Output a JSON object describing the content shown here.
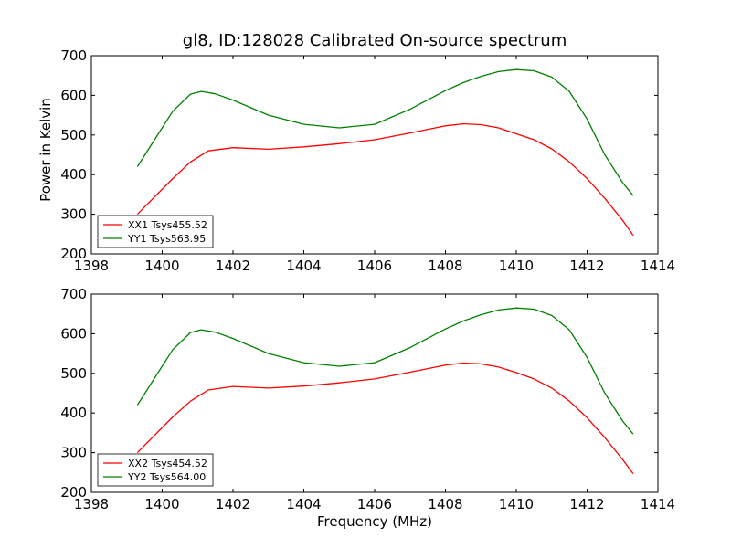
{
  "figure": {
    "title": "gl8, ID:128028 Calibrated On-source spectrum",
    "ylabel": "Power in Kelvin",
    "xlabel": "Frequency (MHz)"
  },
  "colors": {
    "red": "#ff0000",
    "green": "#008000"
  },
  "chart_data": [
    {
      "type": "line",
      "title": "gl8, ID:128028 Calibrated On-source spectrum",
      "xlabel": "",
      "ylabel": "Power in Kelvin",
      "xlim": [
        1398,
        1414
      ],
      "ylim": [
        200,
        700
      ],
      "xticks": [
        "1398",
        "1400",
        "1402",
        "1404",
        "1406",
        "1408",
        "1410",
        "1412",
        "1414"
      ],
      "yticks": [
        "200",
        "300",
        "400",
        "500",
        "600",
        "700"
      ],
      "legend_position": "lower-left",
      "grid": false,
      "series": [
        {
          "name": "XX1 Tsys455.52",
          "color": "#ff0000",
          "x": [
            1399.3,
            1399.8,
            1400.3,
            1400.8,
            1401.3,
            1402,
            1403,
            1404,
            1405,
            1406,
            1407,
            1408,
            1408.5,
            1409,
            1409.5,
            1410,
            1410.5,
            1411,
            1411.5,
            1412,
            1412.5,
            1413,
            1413.3
          ],
          "y": [
            300,
            345,
            390,
            432,
            460,
            468,
            464,
            470,
            478,
            488,
            505,
            523,
            528,
            526,
            518,
            503,
            488,
            465,
            432,
            390,
            340,
            285,
            247
          ]
        },
        {
          "name": "YY1 Tsys563.95",
          "color": "#008000",
          "x": [
            1399.3,
            1399.8,
            1400.3,
            1400.8,
            1401.1,
            1401.5,
            1402,
            1403,
            1404,
            1405,
            1406,
            1407,
            1408,
            1408.5,
            1409,
            1409.5,
            1410,
            1410.5,
            1411,
            1411.5,
            1412,
            1412.5,
            1413,
            1413.3
          ],
          "y": [
            420,
            490,
            560,
            603,
            610,
            604,
            588,
            550,
            527,
            518,
            527,
            565,
            612,
            632,
            648,
            660,
            665,
            662,
            646,
            610,
            540,
            450,
            380,
            347
          ]
        }
      ]
    },
    {
      "type": "line",
      "title": "",
      "xlabel": "Frequency (MHz)",
      "ylabel": "",
      "xlim": [
        1398,
        1414
      ],
      "ylim": [
        200,
        700
      ],
      "xticks": [
        "1398",
        "1400",
        "1402",
        "1404",
        "1406",
        "1408",
        "1410",
        "1412",
        "1414"
      ],
      "yticks": [
        "200",
        "300",
        "400",
        "500",
        "600",
        "700"
      ],
      "legend_position": "lower-left",
      "grid": false,
      "series": [
        {
          "name": "XX2 Tsys454.52",
          "color": "#ff0000",
          "x": [
            1399.3,
            1399.8,
            1400.3,
            1400.8,
            1401.3,
            1402,
            1403,
            1404,
            1405,
            1406,
            1407,
            1408,
            1408.5,
            1409,
            1409.5,
            1410,
            1410.5,
            1411,
            1411.5,
            1412,
            1412.5,
            1413,
            1413.3
          ],
          "y": [
            300,
            345,
            390,
            430,
            458,
            467,
            463,
            468,
            476,
            486,
            503,
            521,
            526,
            524,
            516,
            502,
            486,
            463,
            430,
            388,
            338,
            283,
            247
          ]
        },
        {
          "name": "YY2 Tsys564.00",
          "color": "#008000",
          "x": [
            1399.3,
            1399.8,
            1400.3,
            1400.8,
            1401.1,
            1401.5,
            1402,
            1403,
            1404,
            1405,
            1406,
            1407,
            1408,
            1408.5,
            1409,
            1409.5,
            1410,
            1410.5,
            1411,
            1411.5,
            1412,
            1412.5,
            1413,
            1413.3
          ],
          "y": [
            420,
            490,
            560,
            603,
            610,
            604,
            588,
            550,
            527,
            518,
            527,
            565,
            612,
            632,
            648,
            660,
            665,
            662,
            646,
            610,
            540,
            450,
            380,
            347
          ]
        }
      ]
    }
  ]
}
